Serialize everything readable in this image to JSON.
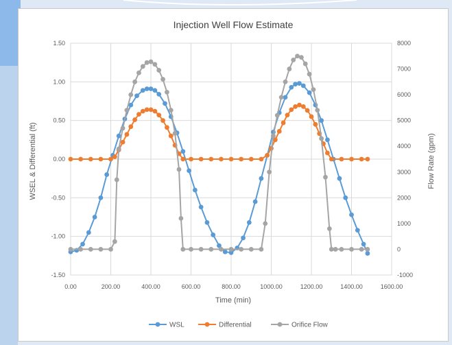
{
  "chart_data": {
    "type": "line",
    "title": "Injection Well Flow Estimate",
    "xlabel": "Time (min)",
    "ylabel": "WSEL & Differential (ft)",
    "y2label": "Flow Rate (gpm)",
    "xlim": [
      0,
      1600
    ],
    "ylim": [
      -1.5,
      1.5
    ],
    "y2lim": [
      -1000,
      8000
    ],
    "xticks": [
      "0.00",
      "200.00",
      "400.00",
      "600.00",
      "800.00",
      "1000.00",
      "1200.00",
      "1400.00",
      "1600.00"
    ],
    "yticks": [
      "1.50",
      "1.00",
      "0.50",
      "0.00",
      "-0.50",
      "-1.00",
      "-1.50"
    ],
    "y2ticks": [
      "8000",
      "7000",
      "6000",
      "5000",
      "4000",
      "3000",
      "2000",
      "1000",
      "0",
      "-1000"
    ],
    "grid": true,
    "legend_position": "bottom",
    "series": [
      {
        "name": "WSL",
        "color": "#5b9bd5",
        "axis": "left",
        "x": [
          0,
          30,
          60,
          90,
          120,
          150,
          180,
          210,
          240,
          270,
          300,
          330,
          360,
          380,
          400,
          420,
          440,
          470,
          500,
          530,
          560,
          590,
          620,
          650,
          680,
          710,
          740,
          770,
          800,
          830,
          860,
          890,
          920,
          950,
          980,
          1010,
          1040,
          1070,
          1100,
          1120,
          1140,
          1160,
          1190,
          1220,
          1250,
          1280,
          1310,
          1340,
          1370,
          1400,
          1430,
          1460,
          1480
        ],
        "y": [
          -1.2,
          -1.18,
          -1.1,
          -0.95,
          -0.75,
          -0.5,
          -0.2,
          0.05,
          0.3,
          0.52,
          0.7,
          0.82,
          0.89,
          0.91,
          0.91,
          0.89,
          0.84,
          0.72,
          0.55,
          0.34,
          0.1,
          -0.15,
          -0.4,
          -0.62,
          -0.82,
          -0.98,
          -1.12,
          -1.2,
          -1.21,
          -1.15,
          -1.02,
          -0.82,
          -0.55,
          -0.25,
          0.05,
          0.35,
          0.6,
          0.8,
          0.93,
          0.97,
          0.98,
          0.95,
          0.86,
          0.7,
          0.5,
          0.25,
          0.0,
          -0.25,
          -0.5,
          -0.72,
          -0.92,
          -1.1,
          -1.22
        ]
      },
      {
        "name": "Differential",
        "color": "#ed7d31",
        "axis": "left",
        "x": [
          0,
          50,
          100,
          150,
          200,
          220,
          240,
          260,
          280,
          300,
          320,
          340,
          360,
          380,
          400,
          420,
          440,
          460,
          480,
          500,
          520,
          540,
          560,
          600,
          650,
          700,
          750,
          800,
          850,
          900,
          950,
          980,
          1000,
          1020,
          1040,
          1060,
          1080,
          1100,
          1120,
          1140,
          1160,
          1180,
          1200,
          1220,
          1240,
          1260,
          1280,
          1300,
          1350,
          1400,
          1450,
          1480
        ],
        "y": [
          0,
          0,
          0,
          0,
          0,
          0.03,
          0.12,
          0.22,
          0.32,
          0.42,
          0.51,
          0.58,
          0.62,
          0.64,
          0.64,
          0.62,
          0.57,
          0.5,
          0.41,
          0.3,
          0.18,
          0.07,
          0,
          0,
          0,
          0,
          0,
          0,
          0,
          0,
          0,
          0.05,
          0.14,
          0.25,
          0.36,
          0.47,
          0.57,
          0.64,
          0.68,
          0.7,
          0.68,
          0.63,
          0.55,
          0.45,
          0.33,
          0.2,
          0.08,
          0,
          0,
          0,
          0,
          0
        ]
      },
      {
        "name": "Orifice Flow",
        "color": "#a5a5a5",
        "axis": "right",
        "x": [
          0,
          50,
          100,
          150,
          200,
          220,
          230,
          240,
          260,
          280,
          300,
          320,
          340,
          360,
          380,
          400,
          420,
          440,
          460,
          480,
          500,
          520,
          540,
          550,
          560,
          600,
          650,
          700,
          750,
          800,
          850,
          900,
          950,
          970,
          990,
          1010,
          1030,
          1050,
          1070,
          1090,
          1110,
          1130,
          1150,
          1170,
          1190,
          1210,
          1230,
          1250,
          1270,
          1290,
          1300,
          1320,
          1350,
          1400,
          1450,
          1480
        ],
        "y": [
          0,
          0,
          0,
          0,
          0,
          300,
          2700,
          3900,
          4700,
          5400,
          6000,
          6500,
          6850,
          7100,
          7250,
          7280,
          7180,
          6950,
          6600,
          6100,
          5400,
          4500,
          3100,
          1200,
          0,
          0,
          0,
          0,
          0,
          0,
          0,
          0,
          0,
          1000,
          3000,
          4400,
          5200,
          5900,
          6500,
          7000,
          7350,
          7500,
          7450,
          7200,
          6800,
          6200,
          5400,
          4300,
          2800,
          800,
          0,
          0,
          0,
          0,
          0,
          0
        ]
      }
    ]
  }
}
